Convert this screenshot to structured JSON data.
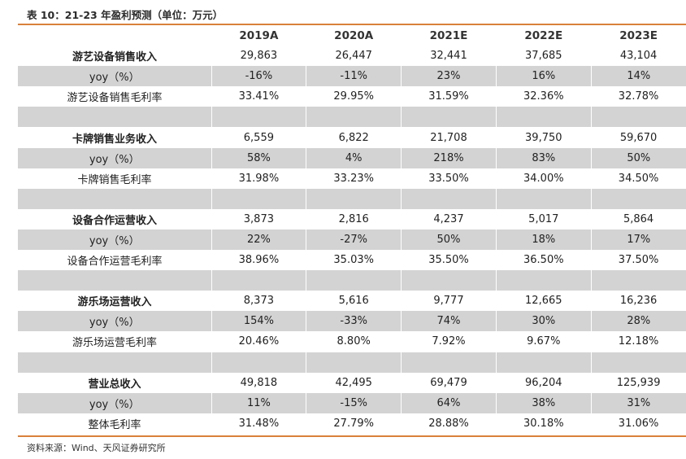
{
  "title": "表 10：21-23 年盈利预测（单位：万元）",
  "source": "资料来源：Wind、天风证券研究所",
  "columns": [
    "",
    "2019A",
    "2020A",
    "2021E",
    "2022E",
    "2023E"
  ],
  "rows": [
    {
      "label": "游艺设备销售收入",
      "values": [
        "29,863",
        "26,447",
        "32,441",
        "37,685",
        "43,104"
      ]
    },
    {
      "label": "yoy（%）",
      "values": [
        "-16%",
        "-11%",
        "23%",
        "16%",
        "14%"
      ]
    },
    {
      "label": "游艺设备销售毛利率",
      "values": [
        "33.41%",
        "29.95%",
        "31.59%",
        "32.36%",
        "32.78%"
      ]
    },
    {
      "label": "",
      "values": [
        "",
        "",
        "",
        "",
        ""
      ]
    },
    {
      "label": "卡牌销售业务收入",
      "values": [
        "6,559",
        "6,822",
        "21,708",
        "39,750",
        "59,670"
      ]
    },
    {
      "label": "yoy（%）",
      "values": [
        "58%",
        "4%",
        "218%",
        "83%",
        "50%"
      ]
    },
    {
      "label": "卡牌销售毛利率",
      "values": [
        "31.98%",
        "33.23%",
        "33.50%",
        "34.00%",
        "34.50%"
      ]
    },
    {
      "label": "",
      "values": [
        "",
        "",
        "",
        "",
        ""
      ]
    },
    {
      "label": "设备合作运营收入",
      "values": [
        "3,873",
        "2,816",
        "4,237",
        "5,017",
        "5,864"
      ]
    },
    {
      "label": "yoy（%）",
      "values": [
        "22%",
        "-27%",
        "50%",
        "18%",
        "17%"
      ]
    },
    {
      "label": "设备合作运营毛利率",
      "values": [
        "38.96%",
        "35.03%",
        "35.50%",
        "36.50%",
        "37.50%"
      ]
    },
    {
      "label": "",
      "values": [
        "",
        "",
        "",
        "",
        ""
      ]
    },
    {
      "label": "游乐场运营收入",
      "values": [
        "8,373",
        "5,616",
        "9,777",
        "12,665",
        "16,236"
      ]
    },
    {
      "label": "yoy（%）",
      "values": [
        "154%",
        "-33%",
        "74%",
        "30%",
        "28%"
      ]
    },
    {
      "label": "游乐场运营毛利率",
      "values": [
        "20.46%",
        "8.80%",
        "7.92%",
        "9.67%",
        "12.18%"
      ]
    },
    {
      "label": "",
      "values": [
        "",
        "",
        "",
        "",
        ""
      ]
    },
    {
      "label": "营业总收入",
      "values": [
        "49,818",
        "42,495",
        "69,479",
        "96,204",
        "125,939"
      ]
    },
    {
      "label": "yoy（%）",
      "values": [
        "11%",
        "-15%",
        "64%",
        "38%",
        "31%"
      ]
    },
    {
      "label": "整体毛利率",
      "values": [
        "31.48%",
        "27.79%",
        "28.88%",
        "30.18%",
        "31.06%"
      ]
    }
  ]
}
